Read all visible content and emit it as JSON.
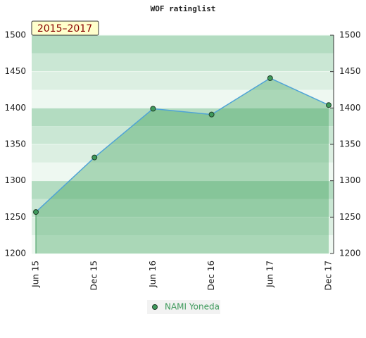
{
  "chart_data": {
    "type": "line",
    "title": "WOF ratinglist",
    "annotation": "2015–2017",
    "categories": [
      "Jun 15",
      "Dec 15",
      "Jun 16",
      "Dec 16",
      "Jun 17",
      "Dec 17"
    ],
    "series": [
      {
        "name": "NAMI Yoneda",
        "color": "#4fa3d6",
        "marker_color": "#3f9a5c",
        "fill_color": "rgba(60,160,90,0.38)",
        "values": [
          1257,
          1332,
          1399,
          1391,
          1441,
          1404
        ]
      }
    ],
    "ylim": [
      1200,
      1500
    ],
    "yticks": [
      1200,
      1250,
      1300,
      1350,
      1400,
      1450,
      1500
    ],
    "grid": true,
    "legend": "bottom"
  }
}
